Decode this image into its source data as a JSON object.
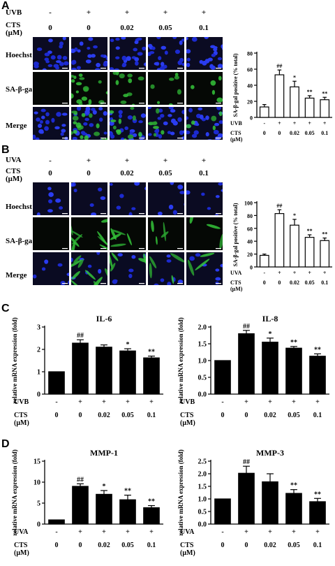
{
  "panels": {
    "A": {
      "letter": "A",
      "treatment_label": "UVB",
      "cts_label": "CTS",
      "unit_label": "(μM)",
      "signs": [
        "-",
        "+",
        "+",
        "+",
        "+"
      ],
      "doses": [
        "0",
        "0",
        "0.02",
        "0.05",
        "0.1"
      ],
      "rows": [
        "Hoechst",
        "SA-β-gal",
        "Merge"
      ]
    },
    "B": {
      "letter": "B",
      "treatment_label": "UVA",
      "cts_label": "CTS",
      "unit_label": "(μM)",
      "signs": [
        "-",
        "+",
        "+",
        "+",
        "+"
      ],
      "doses": [
        "0",
        "0",
        "0.02",
        "0.05",
        "0.1"
      ],
      "rows": [
        "Hoechst",
        "SA-β-gal",
        "Merge"
      ]
    },
    "C": {
      "letter": "C"
    },
    "D": {
      "letter": "D"
    }
  },
  "chart_data": [
    {
      "id": "A-bar",
      "type": "bar",
      "ylabel": "SA-β-gal positive (% total)",
      "ylim": [
        0,
        80
      ],
      "yticks": [
        "0",
        "20",
        "40",
        "60",
        "80"
      ],
      "values": [
        13,
        53,
        38,
        24,
        22
      ],
      "errors": [
        3,
        6,
        7,
        3,
        3
      ],
      "markers": [
        "",
        "##",
        "*",
        "**",
        "**"
      ],
      "treatment_label": "UVB",
      "cts_label": "CTS",
      "unit_label": "(μM)",
      "signs": [
        "-",
        "+",
        "+",
        "+",
        "+"
      ],
      "doses": [
        "0",
        "0",
        "0.02",
        "0.05",
        "0.1"
      ],
      "fill": "#ffffff"
    },
    {
      "id": "B-bar",
      "type": "bar",
      "ylabel": "SA-β-gal positive (% total)",
      "ylim": [
        0,
        100
      ],
      "yticks": [
        "0",
        "20",
        "40",
        "60",
        "80",
        "100"
      ],
      "values": [
        18,
        83,
        65,
        46,
        41
      ],
      "errors": [
        2,
        6,
        9,
        4,
        4
      ],
      "markers": [
        "",
        "##",
        "*",
        "**",
        "**"
      ],
      "treatment_label": "UVA",
      "cts_label": "CTS",
      "unit_label": "(μM)",
      "signs": [
        "-",
        "+",
        "+",
        "+",
        "+"
      ],
      "doses": [
        "0",
        "0",
        "0.02",
        "0.05",
        "0.1"
      ],
      "fill": "#ffffff"
    },
    {
      "id": "C-IL6",
      "type": "bar",
      "title": "IL-6",
      "ylabel": "relative mRNA expression (fold)",
      "ylim": [
        0,
        3
      ],
      "yticks": [
        "0",
        "1",
        "2",
        "3"
      ],
      "values": [
        1.0,
        2.28,
        2.1,
        1.93,
        1.62
      ],
      "errors": [
        0,
        0.15,
        0.1,
        0.1,
        0.08
      ],
      "markers": [
        "",
        "##",
        "",
        "*",
        "**"
      ],
      "treatment_label": "UVB",
      "cts_label": "CTS",
      "unit_label": "(μM)",
      "signs": [
        "-",
        "+",
        "+",
        "+",
        "+"
      ],
      "doses": [
        "0",
        "0",
        "0.02",
        "0.05",
        "0.1"
      ],
      "fill": "#000000"
    },
    {
      "id": "C-IL8",
      "type": "bar",
      "title": "IL-8",
      "ylabel": "relative mRNA expression (fold)",
      "ylim": [
        0,
        2.0
      ],
      "yticks": [
        "0.0",
        "0.5",
        "1.0",
        "1.5",
        "2.0"
      ],
      "values": [
        1.0,
        1.8,
        1.55,
        1.37,
        1.13
      ],
      "errors": [
        0,
        0.1,
        0.12,
        0.05,
        0.07
      ],
      "markers": [
        "",
        "##",
        "*",
        "**",
        "**"
      ],
      "treatment_label": "UVB",
      "cts_label": "CTS",
      "unit_label": "(μM)",
      "signs": [
        "-",
        "+",
        "+",
        "+",
        "+"
      ],
      "doses": [
        "0",
        "0",
        "0.02",
        "0.05",
        "0.1"
      ],
      "fill": "#000000"
    },
    {
      "id": "D-MMP1",
      "type": "bar",
      "title": "MMP-1",
      "ylabel": "relative mRNA expression (fold)",
      "ylim": [
        0,
        15
      ],
      "yticks": [
        "0",
        "5",
        "10",
        "15"
      ],
      "values": [
        1.0,
        9.0,
        7.1,
        5.8,
        3.9
      ],
      "errors": [
        0,
        0.6,
        0.9,
        1.1,
        0.5
      ],
      "markers": [
        "",
        "##",
        "*",
        "**",
        "**"
      ],
      "treatment_label": "UVA",
      "cts_label": "CTS",
      "unit_label": "(μM)",
      "signs": [
        "-",
        "+",
        "+",
        "+",
        "+"
      ],
      "doses": [
        "0",
        "0",
        "0.02",
        "0.05",
        "0.1"
      ],
      "fill": "#000000"
    },
    {
      "id": "D-MMP3",
      "type": "bar",
      "title": "MMP-3",
      "ylabel": "relative mRNA expression (fold)",
      "ylim": [
        0,
        2.5
      ],
      "yticks": [
        "0.0",
        "0.5",
        "1.0",
        "1.5",
        "2.0",
        "2.5"
      ],
      "values": [
        1.0,
        2.02,
        1.68,
        1.22,
        0.89
      ],
      "errors": [
        0,
        0.28,
        0.32,
        0.15,
        0.13
      ],
      "markers": [
        "",
        "##",
        "",
        "**",
        "**"
      ],
      "treatment_label": "UVA",
      "cts_label": "CTS",
      "unit_label": "(μM)",
      "signs": [
        "-",
        "+",
        "+",
        "+",
        "+"
      ],
      "doses": [
        "0",
        "0",
        "0.02",
        "0.05",
        "0.1"
      ],
      "fill": "#000000"
    }
  ]
}
